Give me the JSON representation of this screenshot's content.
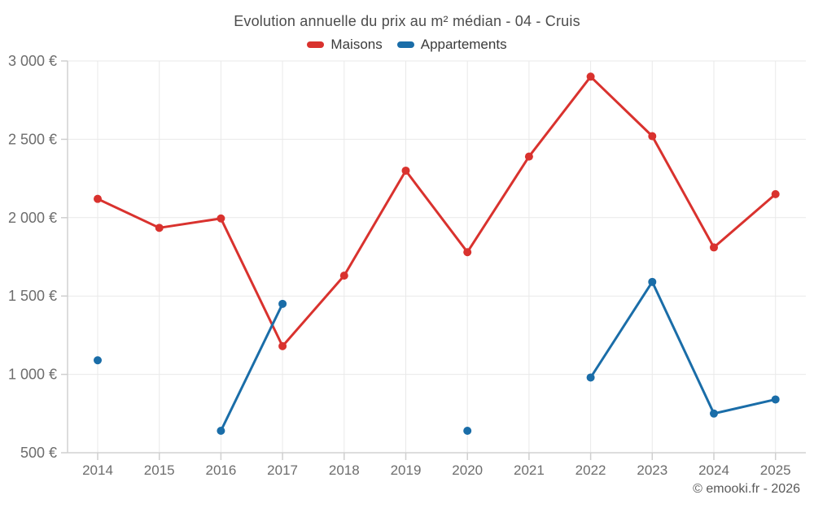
{
  "chart_data": {
    "type": "line",
    "title": "Evolution annuelle du prix au m² médian - 04 - Cruis",
    "categories": [
      "2014",
      "2015",
      "2016",
      "2017",
      "2018",
      "2019",
      "2020",
      "2021",
      "2022",
      "2023",
      "2024",
      "2025"
    ],
    "series": [
      {
        "name": "Maisons",
        "color": "#d9322e",
        "values": [
          2120,
          1935,
          1995,
          1180,
          1630,
          2300,
          1780,
          2390,
          2900,
          2520,
          1810,
          2150
        ]
      },
      {
        "name": "Appartements",
        "color": "#1a6da8",
        "values": [
          1090,
          null,
          640,
          1450,
          null,
          null,
          640,
          null,
          980,
          1590,
          750,
          840
        ]
      }
    ],
    "ylim": [
      500,
      3000
    ],
    "y_ticks": [
      500,
      1000,
      1500,
      2000,
      2500,
      3000
    ],
    "y_tick_labels": [
      "500 €",
      "1 000 €",
      "1 500 €",
      "2 000 €",
      "2 500 €",
      "3 000 €"
    ],
    "grid": true,
    "legend_position": "top",
    "marker_radius": 5,
    "line_width": 3
  },
  "colors": {
    "grid": "#e9e9e9",
    "axis": "#d2d2d2",
    "tick": "#cfcfcf",
    "axis_text": "#6d6d6d"
  },
  "footer": {
    "copyright": "© emooki.fr - 2026"
  }
}
